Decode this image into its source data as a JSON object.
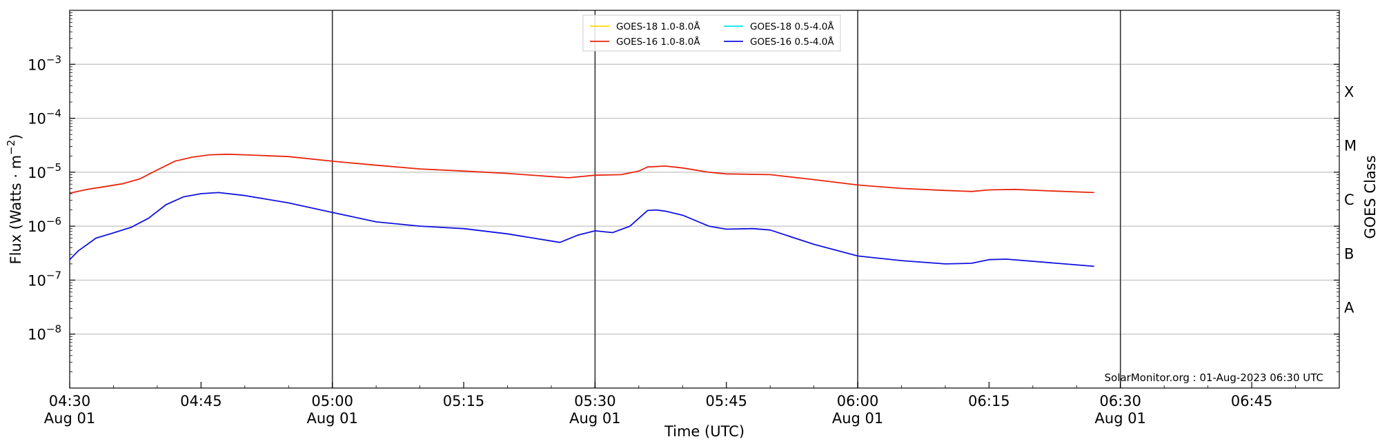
{
  "chart_data": {
    "type": "line",
    "xlabel": "Time (UTC)",
    "ylabel": "Flux (Watts · m",
    "ylabel_exponent": "−2",
    "ylabel_close": ")",
    "right_ylabel": "GOES Class",
    "y_scale": "log",
    "ylim": [
      1e-09,
      0.01
    ],
    "y_ticks": [
      {
        "value": 1e-08,
        "base": "10",
        "exp": "−8"
      },
      {
        "value": 1e-07,
        "base": "10",
        "exp": "−7"
      },
      {
        "value": 1e-06,
        "base": "10",
        "exp": "−6"
      },
      {
        "value": 1e-05,
        "base": "10",
        "exp": "−5"
      },
      {
        "value": 0.0001,
        "base": "10",
        "exp": "−4"
      },
      {
        "value": 0.001,
        "base": "10",
        "exp": "−3"
      }
    ],
    "xlim": [
      "04:30",
      "06:55"
    ],
    "x_ticks": [
      {
        "time": "04:30",
        "label": "04:30",
        "sublabel": "Aug 01"
      },
      {
        "time": "04:45",
        "label": "04:45",
        "sublabel": ""
      },
      {
        "time": "05:00",
        "label": "05:00",
        "sublabel": "Aug 01"
      },
      {
        "time": "05:15",
        "label": "05:15",
        "sublabel": ""
      },
      {
        "time": "05:30",
        "label": "05:30",
        "sublabel": "Aug 01"
      },
      {
        "time": "05:45",
        "label": "05:45",
        "sublabel": ""
      },
      {
        "time": "06:00",
        "label": "06:00",
        "sublabel": "Aug 01"
      },
      {
        "time": "06:15",
        "label": "06:15",
        "sublabel": ""
      },
      {
        "time": "06:30",
        "label": "06:30",
        "sublabel": "Aug 01"
      },
      {
        "time": "06:45",
        "label": "06:45",
        "sublabel": ""
      }
    ],
    "vertical_lines": [
      "05:00",
      "05:30",
      "06:00",
      "06:30"
    ],
    "grid": "horizontal",
    "goes_classes": [
      {
        "label": "A",
        "value": 3.16e-08
      },
      {
        "label": "B",
        "value": 3.16e-07
      },
      {
        "label": "C",
        "value": 3.16e-06
      },
      {
        "label": "M",
        "value": 3.16e-05
      },
      {
        "label": "X",
        "value": 0.000316
      }
    ],
    "legend_position": "top-center",
    "legend": [
      {
        "name": "GOES-18 1.0-8.0Å",
        "color": "#ffd700"
      },
      {
        "name": "GOES-16 1.0-8.0Å",
        "color": "#e8240c"
      },
      {
        "name": "GOES-18 0.5-4.0Å",
        "color": "#00e5ee"
      },
      {
        "name": "GOES-16 0.5-4.0Å",
        "color": "#1010e0"
      }
    ],
    "annotation": "SolarMonitor.org : 01-Aug-2023 06:30 UTC",
    "series": [
      {
        "name": "GOES-16 1.0-8.0Å",
        "color": "#e8240c",
        "points": [
          [
            "04:30",
            4.1e-06
          ],
          [
            "04:32",
            4.8e-06
          ],
          [
            "04:34",
            5.4e-06
          ],
          [
            "04:36",
            6.1e-06
          ],
          [
            "04:38",
            7.5e-06
          ],
          [
            "04:40",
            1.1e-05
          ],
          [
            "04:42",
            1.6e-05
          ],
          [
            "04:44",
            1.9e-05
          ],
          [
            "04:46",
            2.1e-05
          ],
          [
            "04:48",
            2.15e-05
          ],
          [
            "04:50",
            2.1e-05
          ],
          [
            "04:55",
            1.95e-05
          ],
          [
            "05:00",
            1.6e-05
          ],
          [
            "05:05",
            1.35e-05
          ],
          [
            "05:10",
            1.15e-05
          ],
          [
            "05:15",
            1.05e-05
          ],
          [
            "05:20",
            9.5e-06
          ],
          [
            "05:25",
            8.3e-06
          ],
          [
            "05:27",
            7.9e-06
          ],
          [
            "05:30",
            8.8e-06
          ],
          [
            "05:33",
            9e-06
          ],
          [
            "05:35",
            1.05e-05
          ],
          [
            "05:36",
            1.25e-05
          ],
          [
            "05:38",
            1.3e-05
          ],
          [
            "05:40",
            1.2e-05
          ],
          [
            "05:43",
            1e-05
          ],
          [
            "05:45",
            9.3e-06
          ],
          [
            "05:50",
            9e-06
          ],
          [
            "05:55",
            7.3e-06
          ],
          [
            "06:00",
            5.8e-06
          ],
          [
            "06:05",
            5e-06
          ],
          [
            "06:10",
            4.6e-06
          ],
          [
            "06:13",
            4.4e-06
          ],
          [
            "06:15",
            4.7e-06
          ],
          [
            "06:18",
            4.8e-06
          ],
          [
            "06:22",
            4.5e-06
          ],
          [
            "06:27",
            4.2e-06
          ]
        ]
      },
      {
        "name": "GOES-16 0.5-4.0Å",
        "color": "#1010e0",
        "points": [
          [
            "04:30",
            2.4e-07
          ],
          [
            "04:31",
            3.5e-07
          ],
          [
            "04:33",
            6e-07
          ],
          [
            "04:35",
            7.5e-07
          ],
          [
            "04:37",
            9.5e-07
          ],
          [
            "04:39",
            1.4e-06
          ],
          [
            "04:41",
            2.5e-06
          ],
          [
            "04:43",
            3.5e-06
          ],
          [
            "04:45",
            4e-06
          ],
          [
            "04:47",
            4.2e-06
          ],
          [
            "04:50",
            3.7e-06
          ],
          [
            "04:55",
            2.7e-06
          ],
          [
            "05:00",
            1.8e-06
          ],
          [
            "05:05",
            1.2e-06
          ],
          [
            "05:10",
            1e-06
          ],
          [
            "05:15",
            9e-07
          ],
          [
            "05:20",
            7.2e-07
          ],
          [
            "05:25",
            5.3e-07
          ],
          [
            "05:26",
            5e-07
          ],
          [
            "05:28",
            6.8e-07
          ],
          [
            "05:30",
            8.2e-07
          ],
          [
            "05:32",
            7.6e-07
          ],
          [
            "05:34",
            1e-06
          ],
          [
            "05:36",
            1.95e-06
          ],
          [
            "05:37",
            2e-06
          ],
          [
            "05:38",
            1.9e-06
          ],
          [
            "05:40",
            1.6e-06
          ],
          [
            "05:43",
            1e-06
          ],
          [
            "05:45",
            8.8e-07
          ],
          [
            "05:48",
            9e-07
          ],
          [
            "05:50",
            8.5e-07
          ],
          [
            "05:55",
            4.6e-07
          ],
          [
            "06:00",
            2.8e-07
          ],
          [
            "06:05",
            2.3e-07
          ],
          [
            "06:10",
            2e-07
          ],
          [
            "06:13",
            2.05e-07
          ],
          [
            "06:15",
            2.4e-07
          ],
          [
            "06:17",
            2.45e-07
          ],
          [
            "06:22",
            2.1e-07
          ],
          [
            "06:27",
            1.8e-07
          ]
        ]
      }
    ]
  }
}
